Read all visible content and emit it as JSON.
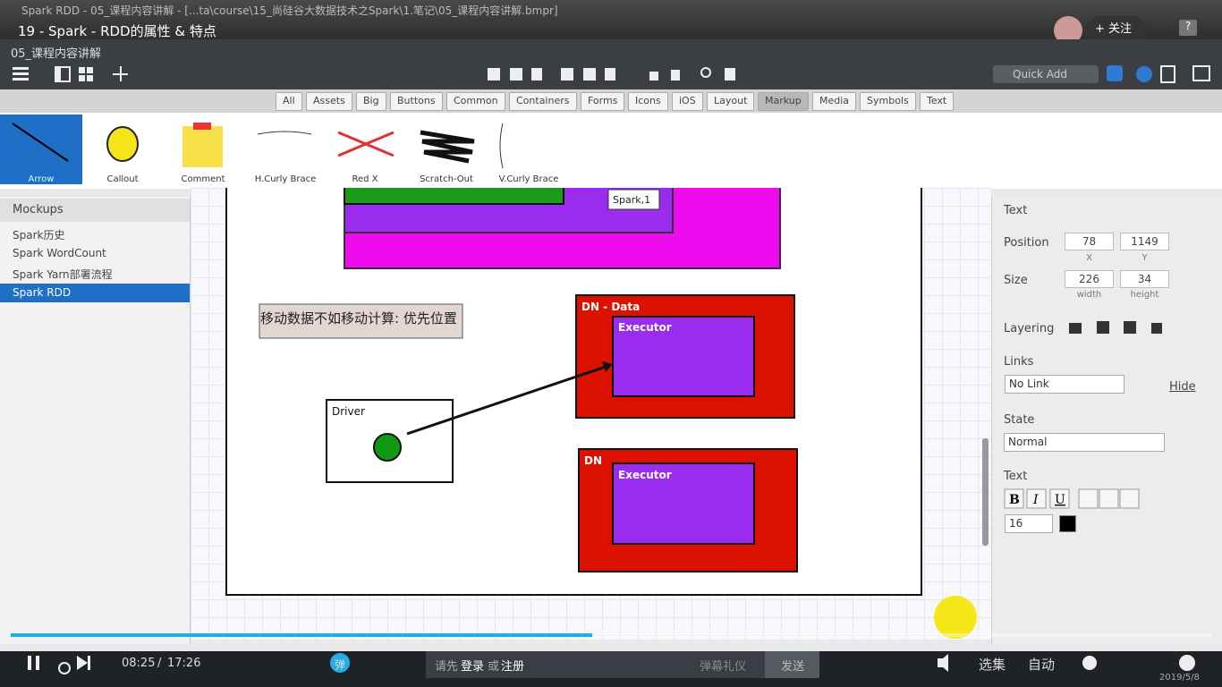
{
  "window_title": "Spark RDD - 05_课程内容讲解 - [...ta\\course\\15_尚硅谷大数据技术之Spark\\1.笔记\\05_课程内容讲解.bmpr]",
  "video_title": "19 - Spark - RDD的属性 & 特点",
  "follow": "关注",
  "tab_title": "05_课程内容讲解",
  "quick_add": "Quick Add",
  "filters": [
    "All",
    "Assets",
    "Big",
    "Buttons",
    "Common",
    "Containers",
    "Forms",
    "Icons",
    "iOS",
    "Layout",
    "Markup",
    "Media",
    "Symbols",
    "Text"
  ],
  "components": [
    "Arrow",
    "Callout",
    "Comment",
    "H.Curly Brace",
    "Red X",
    "Scratch-Out",
    "V.Curly Brace"
  ],
  "mockups": {
    "title": "Mockups",
    "items": [
      "Spark历史",
      "Spark WordCount",
      "Spark Yarn部署流程",
      "Spark RDD"
    ]
  },
  "canvas": {
    "spark_label": "Spark,1",
    "note": "移动数据不如移动计算: 优先位置",
    "driver": "Driver",
    "dn_data": "DN - Data",
    "dn": "DN",
    "executor_1": "Executor",
    "executor_2": "Executor"
  },
  "inspector": {
    "title": "Text",
    "position": "Position",
    "x": 78,
    "y": 1149,
    "x_label": "X",
    "y_label": "Y",
    "size": "Size",
    "width": 226,
    "height": 34,
    "width_label": "width",
    "height_label": "height",
    "layering": "Layering",
    "links": "Links",
    "link_value": "No Link",
    "hide": "Hide",
    "state": "State",
    "state_value": "Normal",
    "text": "Text",
    "font_size": 16
  },
  "player": {
    "current": "08:25",
    "separator": "/",
    "total": "17:26",
    "danmu": "弹",
    "login_prompt": "请先",
    "login": "登录",
    "or": "或",
    "register": "注册",
    "danmu_etiquette": "弹幕礼仪",
    "send": "发送",
    "episodes": "选集",
    "auto": "自动",
    "date": "2019/5/8"
  }
}
